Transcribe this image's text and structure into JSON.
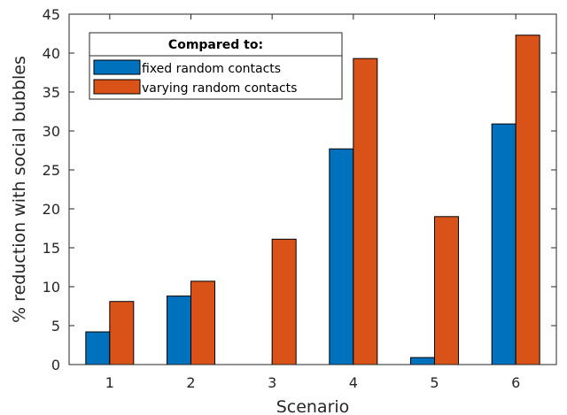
{
  "chart_data": {
    "type": "bar",
    "categories": [
      "1",
      "2",
      "3",
      "4",
      "5",
      "6"
    ],
    "series": [
      {
        "name": "fixed random contacts",
        "color": "#0072BD",
        "values": [
          4.2,
          8.8,
          0,
          27.7,
          0.9,
          30.9
        ]
      },
      {
        "name": "varying random contacts",
        "color": "#D95319",
        "values": [
          8.1,
          10.7,
          16.1,
          39.3,
          19.0,
          42.3
        ]
      }
    ],
    "xlabel": "Scenario",
    "ylabel": "% reduction with social bubbles",
    "ylim": [
      0,
      45
    ],
    "yticks": [
      0,
      5,
      10,
      15,
      20,
      25,
      30,
      35,
      40,
      45
    ],
    "legend": {
      "title": "Compared to:",
      "placement": "top-left"
    },
    "grid": false
  }
}
